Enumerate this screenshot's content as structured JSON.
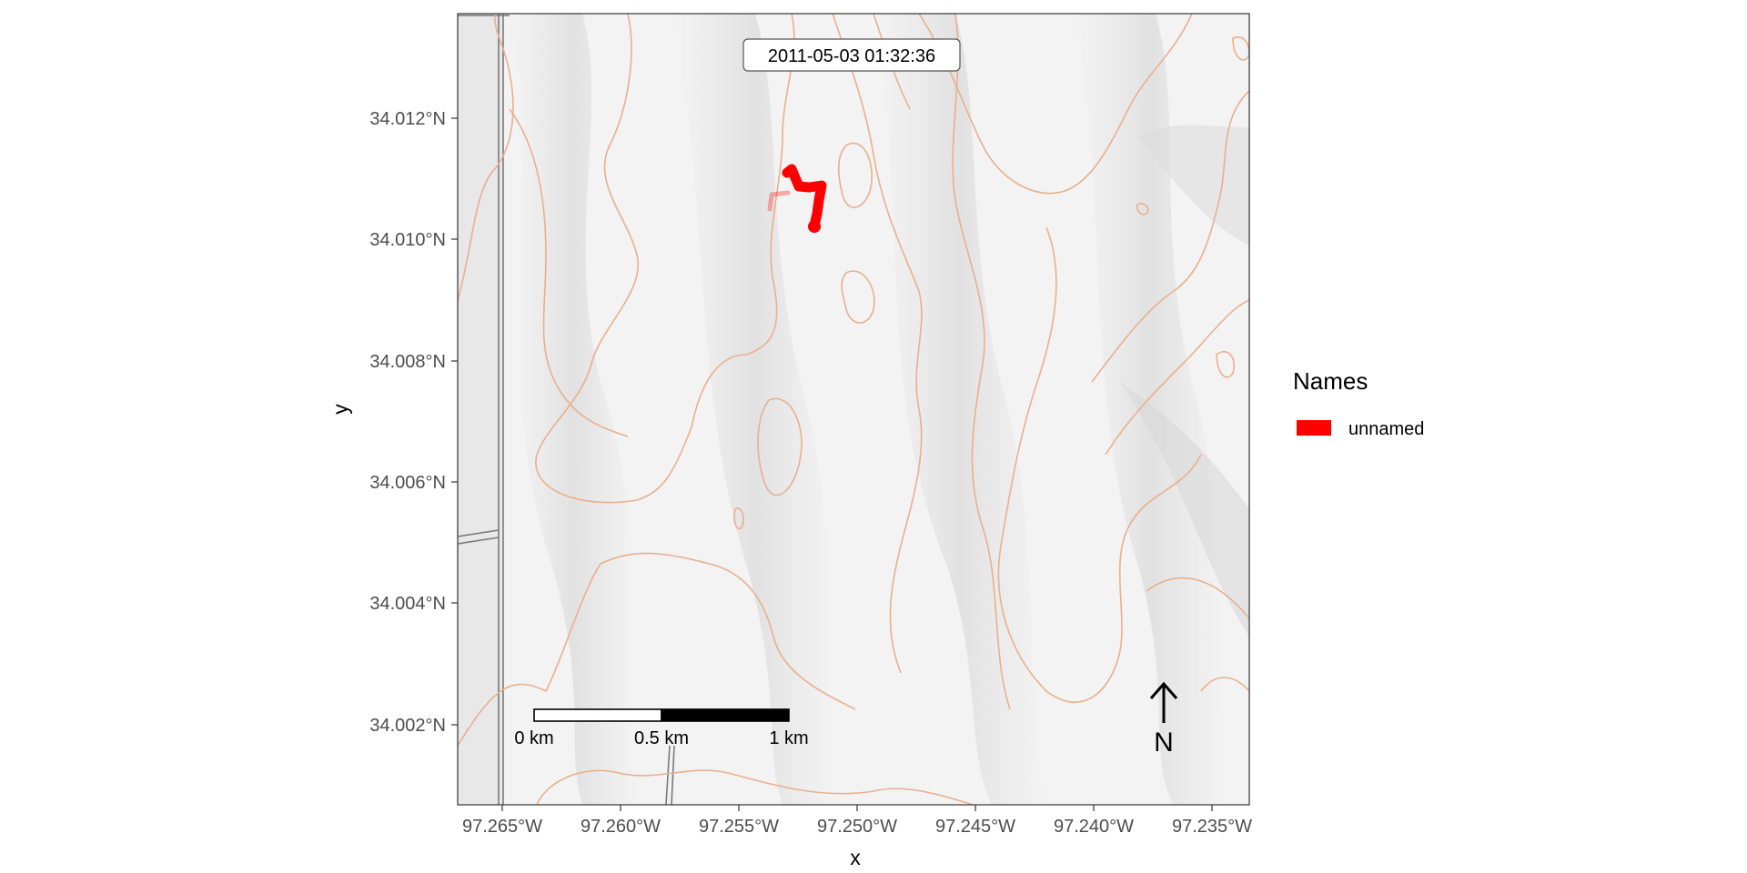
{
  "map": {
    "timestamp": "2011-05-03 01:32:36",
    "x_axis_title": "x",
    "y_axis_title": "y",
    "x_ticks": [
      "97.265°W",
      "97.260°W",
      "97.255°W",
      "97.250°W",
      "97.245°W",
      "97.240°W",
      "97.235°W"
    ],
    "y_ticks": [
      "34.012°N",
      "34.010°N",
      "34.008°N",
      "34.006°N",
      "34.004°N",
      "34.002°N"
    ],
    "scale_bar": {
      "labels": [
        "0 km",
        "0.5 km",
        "1 km"
      ]
    },
    "north_arrow": {
      "label": "N"
    },
    "legend": {
      "title": "Names",
      "entries": [
        {
          "label": "unnamed",
          "color": "#ff0000"
        }
      ]
    },
    "contour_color": "#e8b08d",
    "track_color": "#ff0000"
  }
}
